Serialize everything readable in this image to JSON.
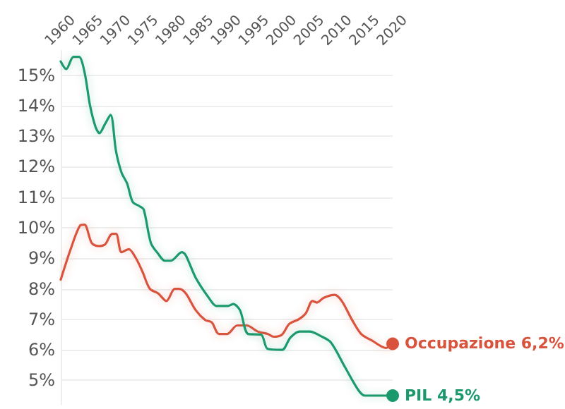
{
  "chart_data": {
    "type": "line",
    "xlim": [
      1960,
      2020
    ],
    "ylim": [
      4.2,
      15.8
    ],
    "xticks": [
      1960,
      1965,
      1970,
      1975,
      1980,
      1985,
      1990,
      1995,
      2000,
      2005,
      2010,
      2015,
      2020
    ],
    "yticks": [
      {
        "value": 5,
        "label": "5%"
      },
      {
        "value": 6,
        "label": "6%"
      },
      {
        "value": 7,
        "label": "7%"
      },
      {
        "value": 8,
        "label": "8%"
      },
      {
        "value": 9,
        "label": "9%"
      },
      {
        "value": 10,
        "label": "10%"
      },
      {
        "value": 11,
        "label": "11%"
      },
      {
        "value": 12,
        "label": "12%"
      },
      {
        "value": 13,
        "label": "13%"
      },
      {
        "value": 14,
        "label": "14%"
      },
      {
        "value": 15,
        "label": "15%"
      }
    ],
    "grid": "y",
    "legend": false,
    "series": [
      {
        "name": "Occupazione",
        "color": "#d9533c",
        "x": [
          1960,
          1961.8,
          1963.5,
          1964.3,
          1965.6,
          1966.8,
          1968,
          1969.3,
          1970,
          1971,
          1972.3,
          1973.6,
          1974.8,
          1976.1,
          1977.6,
          1979.1,
          1980.6,
          1981.4,
          1982.6,
          1984.4,
          1986.1,
          1987.3,
          1988.6,
          1990.1,
          1991.9,
          1993.6,
          1995.6,
          1997.4,
          1998.5,
          2000,
          2001.3,
          2003,
          2004.3,
          2005.5,
          2006.3,
          2007.5,
          2009.5,
          2010.8,
          2012.6,
          2014.3,
          2016.3,
          2018.8,
          2020
        ],
        "values": [
          8.3,
          9.3,
          10.07,
          10.1,
          9.5,
          9.4,
          9.45,
          9.8,
          9.8,
          9.2,
          9.3,
          9.0,
          8.55,
          8.0,
          7.85,
          7.6,
          8.0,
          8.0,
          7.85,
          7.3,
          6.98,
          6.9,
          6.52,
          6.52,
          6.8,
          6.8,
          6.6,
          6.52,
          6.43,
          6.5,
          6.85,
          7.0,
          7.2,
          7.6,
          7.55,
          7.7,
          7.8,
          7.6,
          7.0,
          6.52,
          6.3,
          6.06,
          6.2
        ],
        "value_labels": [
          null,
          null,
          null,
          null,
          null,
          null,
          null,
          null,
          null,
          null,
          null,
          null,
          null,
          null,
          null,
          null,
          null,
          null,
          null,
          null,
          null,
          null,
          null,
          null,
          null,
          null,
          null,
          null,
          null,
          null,
          null,
          null,
          null,
          null,
          null,
          null,
          null,
          null,
          null,
          null,
          null,
          null,
          "6,2%"
        ]
      },
      {
        "name": "PIL",
        "color": "#1a9a6c",
        "x": [
          1960,
          1961,
          1962.3,
          1963.3,
          1964.3,
          1965.3,
          1966.3,
          1967,
          1968,
          1969,
          1970,
          1971,
          1972,
          1973,
          1974.3,
          1975,
          1976.3,
          1977.6,
          1978.8,
          1979.9,
          1981.9,
          1982.6,
          1984.4,
          1986.9,
          1988.1,
          1990.2,
          1991.2,
          1992.4,
          1993.9,
          1996.2,
          1997.4,
          2000,
          2001.5,
          2003.2,
          2005,
          2007,
          2008.8,
          2011.3,
          2013.8,
          2015,
          2017,
          2020
        ],
        "values": [
          15.45,
          15.2,
          15.6,
          15.6,
          15.1,
          14.0,
          13.3,
          13.1,
          13.4,
          13.7,
          12.5,
          11.8,
          11.45,
          10.85,
          10.7,
          10.6,
          9.5,
          9.15,
          8.92,
          8.92,
          9.2,
          9.1,
          8.36,
          7.67,
          7.44,
          7.44,
          7.5,
          7.3,
          6.52,
          6.5,
          6.03,
          6.0,
          6.4,
          6.6,
          6.6,
          6.45,
          6.25,
          5.46,
          4.68,
          4.5,
          4.5,
          4.5
        ],
        "value_labels": [
          null,
          null,
          null,
          null,
          null,
          null,
          null,
          null,
          null,
          null,
          null,
          null,
          null,
          null,
          null,
          null,
          null,
          null,
          null,
          null,
          null,
          null,
          null,
          null,
          null,
          null,
          null,
          null,
          null,
          null,
          null,
          null,
          null,
          null,
          null,
          null,
          null,
          null,
          null,
          null,
          null,
          "4,5%"
        ]
      }
    ]
  }
}
